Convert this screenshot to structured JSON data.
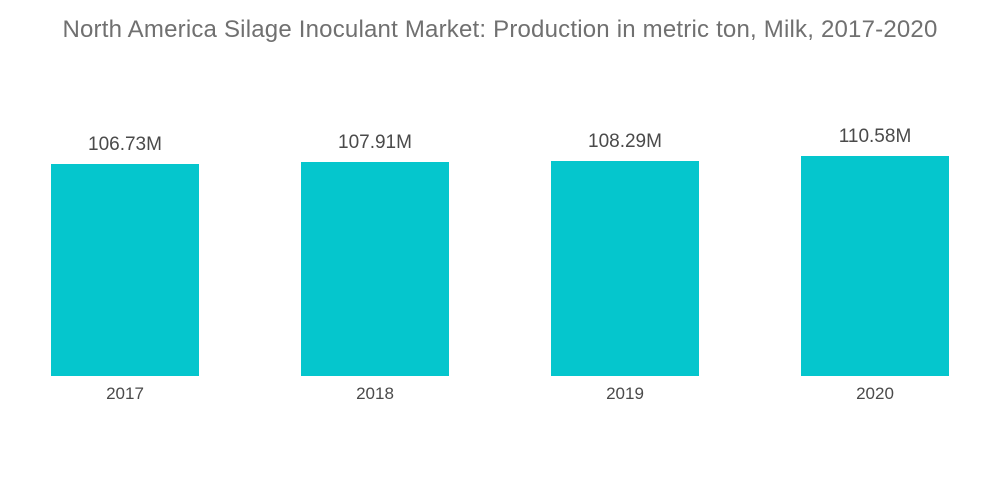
{
  "chart_data": {
    "type": "bar",
    "title": "North America Silage Inoculant Market: Production in metric ton, Milk, 2017-2020",
    "categories": [
      "2017",
      "2018",
      "2019",
      "2020"
    ],
    "values": [
      106.73,
      107.91,
      108.29,
      110.58
    ],
    "value_labels": [
      "106.73M",
      "107.91M",
      "108.29M",
      "110.58M"
    ],
    "series_name": "Production in metric ton",
    "baseline": 0,
    "ylim": [
      0,
      115
    ],
    "grid": false,
    "axes_visible": false,
    "legend": false,
    "data_labels_position": "above-bars"
  },
  "colors": {
    "bar": "#05C6CD",
    "title_text": "#707070",
    "label_text": "#4A4A4A",
    "background": "#FFFFFF"
  }
}
